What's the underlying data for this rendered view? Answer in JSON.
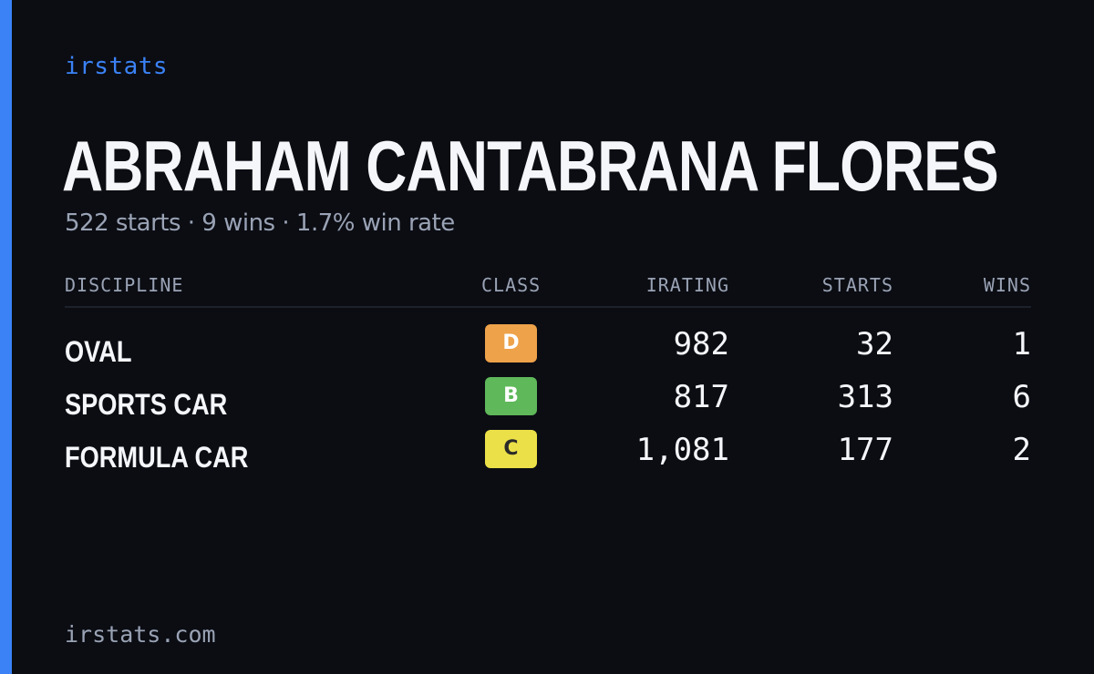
{
  "colors": {
    "background": "#0b0d13",
    "accent": "#3b82f6",
    "brand_text": "#3b82f6"
  },
  "brand": "irstats",
  "driver": {
    "name": "ABRAHAM CANTABRANA FLORES",
    "summary": "522 starts · 9 wins · 1.7% win rate"
  },
  "table": {
    "headers": {
      "discipline": "DISCIPLINE",
      "class": "CLASS",
      "irating": "IRATING",
      "starts": "STARTS",
      "wins": "WINS"
    },
    "rows": [
      {
        "discipline": "OVAL",
        "class": "D",
        "class_color": "#eea24a",
        "class_text_color": "#ffffff",
        "irating": "982",
        "starts": "32",
        "wins": "1"
      },
      {
        "discipline": "SPORTS CAR",
        "class": "B",
        "class_color": "#5fb85a",
        "class_text_color": "#ffffff",
        "irating": "817",
        "starts": "313",
        "wins": "6"
      },
      {
        "discipline": "FORMULA CAR",
        "class": "C",
        "class_color": "#ece048",
        "class_text_color": "#2a2a2a",
        "irating": "1,081",
        "starts": "177",
        "wins": "2"
      }
    ]
  },
  "footer": "irstats.com"
}
